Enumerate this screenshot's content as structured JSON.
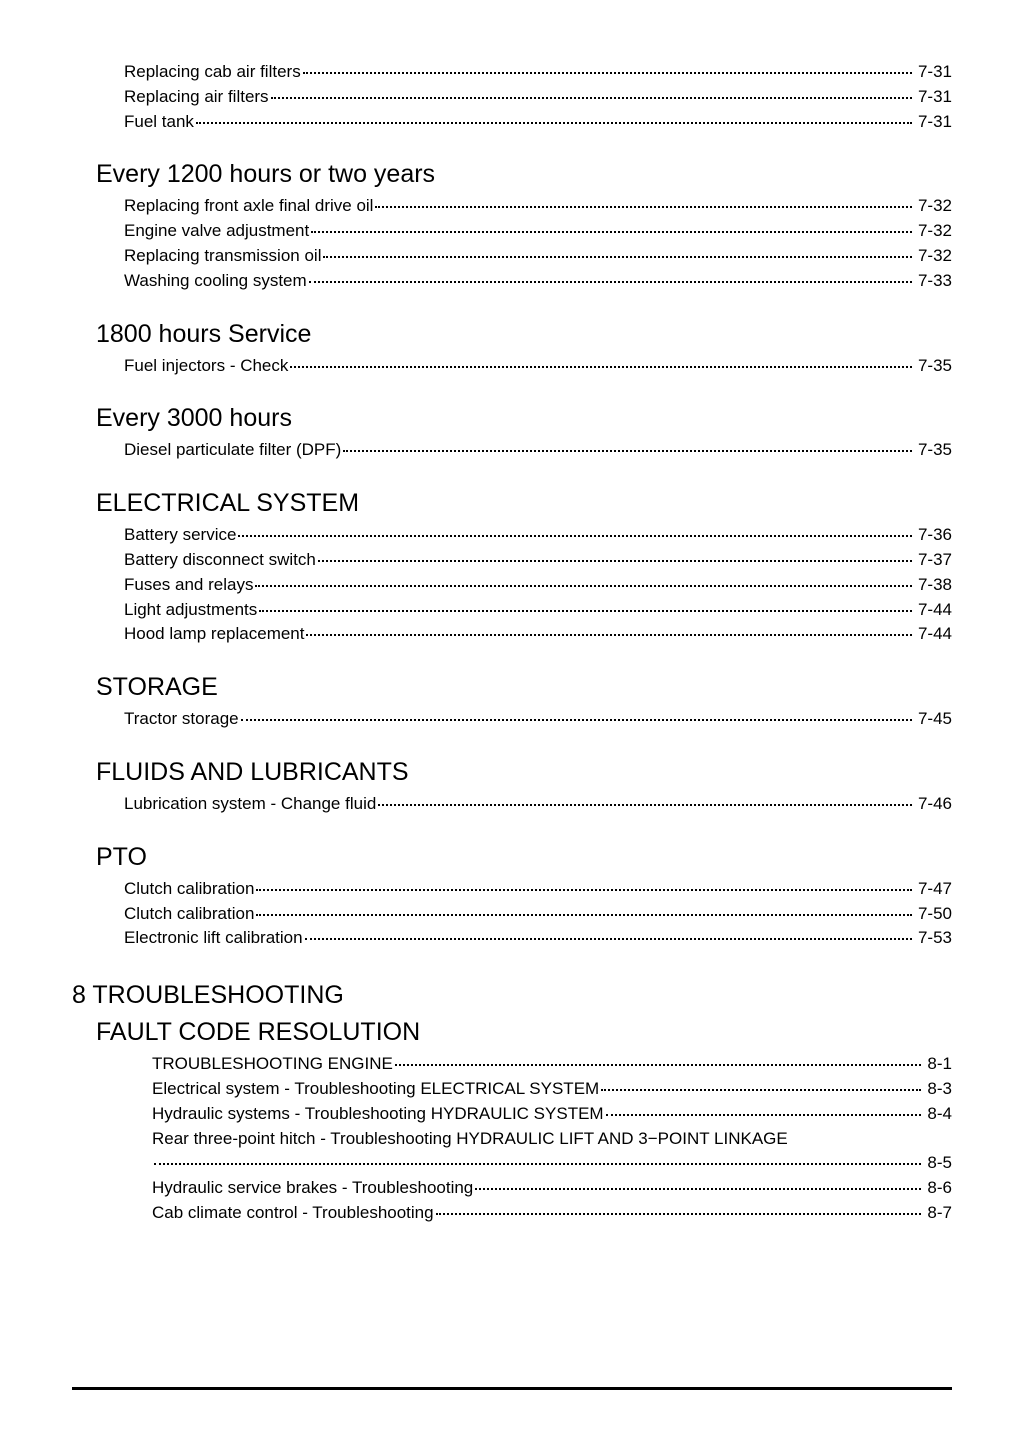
{
  "groups": [
    {
      "type": "entries",
      "entries": [
        {
          "label": "Replacing cab air filters",
          "page": "7-31"
        },
        {
          "label": "Replacing air filters",
          "page": "7-31"
        },
        {
          "label": "Fuel tank",
          "page": "7-31"
        }
      ]
    },
    {
      "type": "section",
      "title": "Every 1200 hours or two years",
      "entries": [
        {
          "label": "Replacing front axle final drive oil",
          "page": "7-32"
        },
        {
          "label": "Engine valve adjustment",
          "page": "7-32"
        },
        {
          "label": "Replacing transmission oil",
          "page": "7-32"
        },
        {
          "label": "Washing cooling system",
          "page": "7-33"
        }
      ]
    },
    {
      "type": "section",
      "title": "1800 hours Service",
      "entries": [
        {
          "label": "Fuel injectors - Check",
          "page": "7-35"
        }
      ]
    },
    {
      "type": "section",
      "title": "Every 3000 hours",
      "entries": [
        {
          "label": "Diesel particulate filter (DPF)",
          "page": "7-35"
        }
      ]
    },
    {
      "type": "section",
      "title": "ELECTRICAL SYSTEM",
      "entries": [
        {
          "label": "Battery service",
          "page": "7-36"
        },
        {
          "label": "Battery disconnect switch",
          "page": "7-37"
        },
        {
          "label": "Fuses and relays",
          "page": "7-38"
        },
        {
          "label": "Light adjustments",
          "page": "7-44"
        },
        {
          "label": "Hood lamp replacement",
          "page": "7-44"
        }
      ]
    },
    {
      "type": "section",
      "title": "STORAGE",
      "entries": [
        {
          "label": "Tractor storage",
          "page": "7-45"
        }
      ]
    },
    {
      "type": "section",
      "title": "FLUIDS AND LUBRICANTS",
      "entries": [
        {
          "label": "Lubrication system - Change fluid",
          "page": "7-46"
        }
      ]
    },
    {
      "type": "section",
      "title": "PTO",
      "entries": [
        {
          "label": "Clutch calibration",
          "page": "7-47"
        },
        {
          "label": "Clutch calibration",
          "page": "7-50"
        },
        {
          "label": "Electronic lift calibration",
          "page": "7-53"
        }
      ]
    },
    {
      "type": "chapter",
      "title": "8 TROUBLESHOOTING"
    },
    {
      "type": "section_nospace",
      "title": "FAULT CODE RESOLUTION",
      "entries": [
        {
          "label": "TROUBLESHOOTING ENGINE",
          "page": "8-1",
          "sub": true
        },
        {
          "label": "Electrical system - Troubleshooting ELECTRICAL SYSTEM",
          "page": "8-3",
          "sub": true
        },
        {
          "label": "Hydraulic systems - Troubleshooting HYDRAULIC SYSTEM",
          "page": "8-4",
          "sub": true
        },
        {
          "label": "Rear three-point hitch - Troubleshooting HYDRAULIC LIFT AND 3−POINT LINKAGE",
          "page": "8-5",
          "sub": true,
          "wrap": true
        },
        {
          "label": "Hydraulic service brakes - Troubleshooting",
          "page": "8-6",
          "sub": true
        },
        {
          "label": "Cab climate control - Troubleshooting",
          "page": "8-7",
          "sub": true
        }
      ]
    }
  ]
}
